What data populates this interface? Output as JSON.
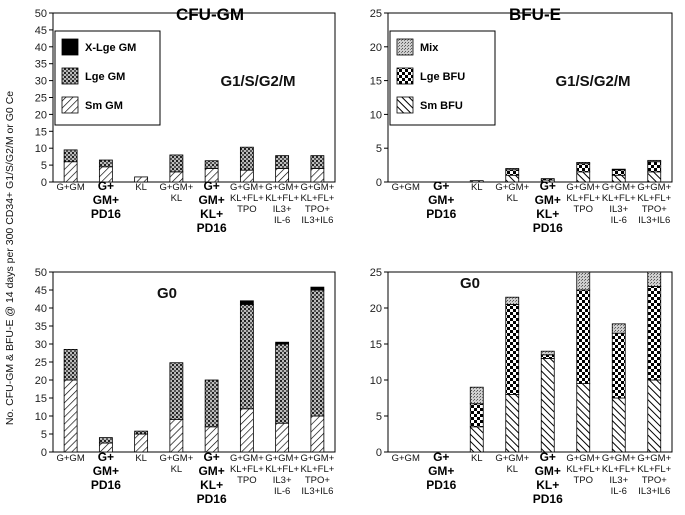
{
  "y_axis_label": "No. CFU-GM & BFU-E @ 14 days per 300 CD34+ G1/S/G2/M or G0 Ce",
  "categories": [
    {
      "lines": [
        "G+GM"
      ],
      "bold": false
    },
    {
      "lines": [
        "G+",
        "GM+",
        "PD16"
      ],
      "bold": true
    },
    {
      "lines": [
        "KL"
      ],
      "bold": false
    },
    {
      "lines": [
        "G+GM+",
        "KL"
      ],
      "bold": false
    },
    {
      "lines": [
        "G+",
        "GM+",
        "KL+",
        "PD16"
      ],
      "bold": true
    },
    {
      "lines": [
        "G+GM+",
        "KL+FL+",
        "TPO"
      ],
      "bold": false
    },
    {
      "lines": [
        "G+GM+",
        "KL+FL+",
        "IL3+",
        "IL-6"
      ],
      "bold": false
    },
    {
      "lines": [
        "G+GM+",
        "KL+FL+",
        "TPO+",
        "IL3+IL6"
      ],
      "bold": false
    }
  ],
  "chart_data": [
    {
      "id": "cfu-g1",
      "type": "bar",
      "stacked": true,
      "title": "CFU-GM",
      "subtitle": "G1/S/G2/M",
      "ylim": [
        0,
        50
      ],
      "yticks": [
        0,
        5,
        10,
        15,
        20,
        25,
        30,
        35,
        40,
        45,
        50
      ],
      "legend": {
        "position": "top-left",
        "entries": [
          "X-Lge GM",
          "Lge GM",
          "Sm GM"
        ]
      },
      "series": [
        {
          "name": "Sm GM",
          "pattern": "hatch",
          "values": [
            6,
            4.5,
            1.5,
            3,
            4,
            3.5,
            4,
            4
          ]
        },
        {
          "name": "Lge GM",
          "pattern": "dots",
          "values": [
            3.5,
            2,
            0,
            5,
            2.3,
            6.8,
            3.8,
            3.8
          ]
        },
        {
          "name": "X-Lge GM",
          "pattern": "solid",
          "values": [
            0,
            0,
            0,
            0,
            0,
            0,
            0,
            0
          ]
        }
      ]
    },
    {
      "id": "bfu-g1",
      "type": "bar",
      "stacked": true,
      "title": "BFU-E",
      "subtitle": "G1/S/G2/M",
      "ylim": [
        0,
        25
      ],
      "yticks": [
        0,
        5,
        10,
        15,
        20,
        25
      ],
      "legend": {
        "position": "top-left",
        "entries": [
          "Mix",
          "Lge BFU",
          "Sm BFU"
        ]
      },
      "series": [
        {
          "name": "Sm BFU",
          "pattern": "diag",
          "values": [
            0,
            0,
            0.2,
            1,
            0.3,
            1.5,
            1,
            1.5
          ]
        },
        {
          "name": "Lge BFU",
          "pattern": "check",
          "values": [
            0,
            0,
            0,
            0.8,
            0.2,
            1.2,
            0.8,
            1.5
          ]
        },
        {
          "name": "Mix",
          "pattern": "stipple",
          "values": [
            0,
            0,
            0,
            0.2,
            0,
            0.2,
            0.1,
            0.2
          ]
        }
      ]
    },
    {
      "id": "cfu-g0",
      "type": "bar",
      "stacked": true,
      "title": "",
      "subtitle": "G0",
      "ylim": [
        0,
        50
      ],
      "yticks": [
        0,
        5,
        10,
        15,
        20,
        25,
        30,
        35,
        40,
        45,
        50
      ],
      "series": [
        {
          "name": "Sm GM",
          "pattern": "hatch",
          "values": [
            20,
            2.5,
            5,
            9,
            7,
            12,
            8,
            10
          ]
        },
        {
          "name": "Lge GM",
          "pattern": "dots",
          "values": [
            8.5,
            1.5,
            0.8,
            15.8,
            13,
            29,
            22,
            35
          ]
        },
        {
          "name": "X-Lge GM",
          "pattern": "solid",
          "values": [
            0,
            0,
            0,
            0,
            0,
            1,
            0.5,
            0.8
          ]
        }
      ]
    },
    {
      "id": "bfu-g0",
      "type": "bar",
      "stacked": true,
      "title": "",
      "subtitle": "G0",
      "ylim": [
        0,
        25
      ],
      "yticks": [
        0,
        5,
        10,
        15,
        20,
        25
      ],
      "series": [
        {
          "name": "Sm BFU",
          "pattern": "diag",
          "values": [
            0,
            0,
            3.5,
            8,
            13,
            9.5,
            7.5,
            10
          ]
        },
        {
          "name": "Lge BFU",
          "pattern": "check",
          "values": [
            0,
            0,
            3.2,
            12.5,
            0.5,
            13,
            9,
            13
          ]
        },
        {
          "name": "Mix",
          "pattern": "stipple",
          "values": [
            0,
            0,
            2.3,
            1,
            0.5,
            2.5,
            1.3,
            2
          ]
        }
      ]
    }
  ]
}
